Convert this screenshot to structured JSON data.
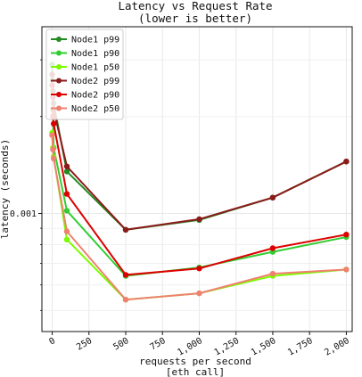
{
  "chart_data": {
    "type": "line",
    "title": "Latency vs Request Rate",
    "subtitle": "(lower is better)",
    "xlabel": "requests per second",
    "xlabel2": "[eth_call]",
    "ylabel": "latency (seconds)",
    "y_scale": "log",
    "xlim": [
      -70,
      2040
    ],
    "ylim": [
      0.00043,
      0.0038
    ],
    "x_ticks": [
      0,
      250,
      500,
      750,
      1000,
      1250,
      1500,
      1750,
      2000
    ],
    "x_tick_labels": [
      "0",
      "250",
      "500",
      "750",
      "1,000",
      "1,250",
      "1,500",
      "1,750",
      "2,000"
    ],
    "y_ticks": [
      0.001
    ],
    "y_tick_labels": [
      "0.001"
    ],
    "grid": true,
    "legend_position": "upper-left",
    "series": [
      {
        "name": "Node1 p99",
        "color": "#228b22",
        "points": [
          [
            0,
            0.0029
          ],
          [
            5,
            0.0024
          ],
          [
            10,
            0.0022
          ],
          [
            100,
            0.00135
          ],
          [
            500,
            0.00089
          ],
          [
            1000,
            0.000955
          ],
          [
            1500,
            0.00112
          ],
          [
            2000,
            0.00145
          ]
        ]
      },
      {
        "name": "Node1 p90",
        "color": "#32cd32",
        "points": [
          [
            0,
            0.0026
          ],
          [
            5,
            0.0021
          ],
          [
            10,
            0.0016
          ],
          [
            100,
            0.00102
          ],
          [
            500,
            0.00064
          ],
          [
            1000,
            0.00068
          ],
          [
            1500,
            0.00076
          ],
          [
            2000,
            0.000845
          ]
        ]
      },
      {
        "name": "Node1 p50",
        "color": "#7cfc00",
        "points": [
          [
            0,
            0.00178
          ],
          [
            5,
            0.0016
          ],
          [
            10,
            0.0015
          ],
          [
            100,
            0.00083
          ],
          [
            500,
            0.00054
          ],
          [
            1000,
            0.000565
          ],
          [
            1500,
            0.00064
          ],
          [
            2000,
            0.00067
          ]
        ]
      },
      {
        "name": "Node2 p99",
        "color": "#8b1a1a",
        "points": [
          [
            0,
            0.0027
          ],
          [
            5,
            0.0023
          ],
          [
            10,
            0.0021
          ],
          [
            100,
            0.0014
          ],
          [
            500,
            0.00089
          ],
          [
            1000,
            0.00096
          ],
          [
            1500,
            0.00112
          ],
          [
            2000,
            0.00145
          ]
        ]
      },
      {
        "name": "Node2 p90",
        "color": "#dd0000",
        "points": [
          [
            0,
            0.0025
          ],
          [
            5,
            0.002
          ],
          [
            10,
            0.0019
          ],
          [
            100,
            0.00115
          ],
          [
            500,
            0.000645
          ],
          [
            1000,
            0.000675
          ],
          [
            1500,
            0.00078
          ],
          [
            2000,
            0.00086
          ]
        ]
      },
      {
        "name": "Node2 p50",
        "color": "#f08070",
        "points": [
          [
            0,
            0.00175
          ],
          [
            5,
            0.00158
          ],
          [
            10,
            0.00148
          ],
          [
            100,
            0.00088
          ],
          [
            500,
            0.00054
          ],
          [
            1000,
            0.000565
          ],
          [
            1500,
            0.00065
          ],
          [
            2000,
            0.00067
          ]
        ]
      }
    ]
  }
}
